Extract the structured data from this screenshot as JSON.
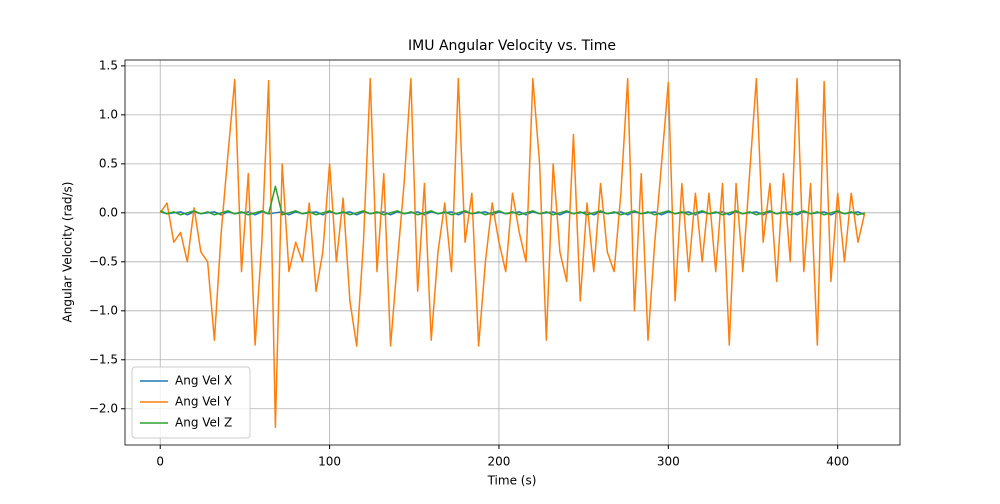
{
  "chart_data": {
    "type": "line",
    "title": "IMU Angular Velocity vs. Time",
    "x_label": "Time (s)",
    "y_label": "Angular Velocity (rad/s)",
    "x": [
      0,
      4,
      8,
      12,
      16,
      20,
      24,
      28,
      32,
      36,
      40,
      44,
      48,
      52,
      56,
      60,
      64,
      68,
      72,
      76,
      80,
      84,
      88,
      92,
      96,
      100,
      104,
      108,
      112,
      116,
      120,
      124,
      128,
      132,
      136,
      140,
      144,
      148,
      152,
      156,
      160,
      164,
      168,
      172,
      176,
      180,
      184,
      188,
      192,
      196,
      200,
      204,
      208,
      212,
      216,
      220,
      224,
      228,
      232,
      236,
      240,
      244,
      248,
      252,
      256,
      260,
      264,
      268,
      272,
      276,
      280,
      284,
      288,
      292,
      296,
      300,
      304,
      308,
      312,
      316,
      320,
      324,
      328,
      332,
      336,
      340,
      344,
      348,
      352,
      356,
      360,
      364,
      368,
      372,
      376,
      380,
      384,
      388,
      392,
      396,
      400,
      404,
      408,
      412,
      416
    ],
    "series": [
      {
        "name": "Ang Vel X",
        "color": "#1f77b4",
        "values": [
          0.01,
          -0.01,
          0,
          0.01,
          -0.02,
          0.01,
          -0.01,
          0,
          0.01,
          -0.02,
          0.01,
          -0.01,
          0,
          0.01,
          -0.02,
          0.01,
          -0.01,
          0,
          0.01,
          -0.02,
          0.01,
          -0.01,
          0,
          0.01,
          -0.02,
          0.01,
          -0.01,
          0,
          0.01,
          -0.02,
          0.01,
          -0.01,
          0,
          0.01,
          -0.02,
          0.01,
          -0.01,
          0,
          0.01,
          -0.02,
          0.01,
          -0.01,
          0,
          0.01,
          -0.02,
          0.01,
          -0.01,
          0,
          0.01,
          -0.02,
          0.01,
          -0.01,
          0,
          0.01,
          -0.02,
          0.01,
          -0.01,
          0,
          0.01,
          -0.02,
          0.01,
          -0.01,
          0,
          0.01,
          -0.02,
          0.01,
          -0.01,
          0,
          0.01,
          -0.02,
          0.01,
          -0.01,
          0,
          0.01,
          -0.02,
          0.01,
          -0.01,
          0,
          0.01,
          -0.02,
          0.01,
          -0.01,
          0,
          0.01,
          -0.02,
          0.01,
          -0.01,
          0,
          0.01,
          -0.02,
          0.01,
          -0.01,
          0,
          0.01,
          -0.02,
          0.01,
          -0.01,
          0,
          0.01,
          -0.02,
          0.01,
          -0.01,
          0,
          0.01,
          -0.02
        ]
      },
      {
        "name": "Ang Vel Y",
        "color": "#ff7f0e",
        "values": [
          0,
          0.1,
          -0.3,
          -0.2,
          -0.5,
          0.05,
          -0.4,
          -0.5,
          -1.3,
          -0.2,
          0.6,
          1.36,
          -0.6,
          0.4,
          -1.35,
          -0.3,
          1.35,
          -2.19,
          0.5,
          -0.6,
          -0.3,
          -0.5,
          0.1,
          -0.8,
          -0.4,
          0.5,
          -0.5,
          0.15,
          -0.9,
          -1.36,
          -0.3,
          1.37,
          -0.6,
          0.4,
          -1.36,
          -0.5,
          0.3,
          1.37,
          -0.8,
          0.3,
          -1.3,
          -0.4,
          0.1,
          -0.6,
          1.37,
          -0.3,
          0.2,
          -1.36,
          -0.5,
          0.1,
          -0.3,
          -0.6,
          0.2,
          -0.2,
          -0.5,
          1.37,
          0.5,
          -1.3,
          0.5,
          -0.4,
          -0.7,
          0.8,
          -0.9,
          0.1,
          -0.6,
          0.3,
          -0.4,
          -0.6,
          0.2,
          1.37,
          -1.0,
          0.4,
          -1.3,
          -0.3,
          0.5,
          1.33,
          -0.9,
          0.3,
          -0.6,
          0.2,
          -0.5,
          0.2,
          -0.6,
          0.3,
          -1.35,
          0.3,
          -0.6,
          0.4,
          1.37,
          -0.3,
          0.3,
          -0.7,
          0.4,
          -0.5,
          1.37,
          -0.6,
          0.3,
          -1.35,
          1.34,
          -0.7,
          0.2,
          -0.5,
          0.2,
          -0.3,
          0
        ]
      },
      {
        "name": "Ang Vel Z",
        "color": "#2ca02c",
        "values": [
          0.02,
          -0.01,
          0.01,
          -0.02,
          0,
          0.02,
          -0.01,
          0.01,
          -0.02,
          0,
          0.02,
          -0.01,
          0.01,
          -0.02,
          0,
          0.02,
          -0.01,
          0.27,
          -0.02,
          0,
          0.02,
          -0.01,
          0.01,
          -0.02,
          0,
          0.02,
          -0.01,
          0.01,
          -0.02,
          0,
          0.02,
          -0.01,
          0.01,
          -0.02,
          0,
          0.02,
          -0.01,
          0.01,
          -0.02,
          0,
          0.02,
          -0.01,
          0.01,
          -0.02,
          0,
          0.02,
          -0.01,
          0.01,
          -0.02,
          0,
          0.02,
          -0.01,
          0.01,
          -0.02,
          0,
          0.02,
          -0.01,
          0.01,
          -0.02,
          0,
          0.02,
          -0.01,
          0.01,
          -0.02,
          0,
          0.02,
          -0.01,
          0.01,
          -0.02,
          0,
          0.02,
          -0.01,
          0.01,
          -0.02,
          0,
          0.02,
          -0.01,
          0.01,
          -0.02,
          0,
          0.02,
          -0.01,
          0.01,
          -0.02,
          0,
          0.02,
          -0.01,
          0.01,
          -0.02,
          0,
          0.02,
          -0.01,
          0.01,
          -0.02,
          0,
          0.02,
          -0.01,
          0.01,
          -0.02,
          0,
          0.02,
          -0.01,
          0.01,
          -0.02,
          0
        ]
      }
    ],
    "xlim": [
      -20.8,
      436.8
    ],
    "ylim": [
      -2.37,
      1.56
    ],
    "xticks": [
      0,
      100,
      200,
      300,
      400
    ],
    "yticks": [
      {
        "value": -2,
        "label": "−2.0"
      },
      {
        "value": -1.5,
        "label": "−1.5"
      },
      {
        "value": -1,
        "label": "−1.0"
      },
      {
        "value": -0.5,
        "label": "−0.5"
      },
      {
        "value": 0,
        "label": "0.0"
      },
      0.5,
      {
        "value": 1,
        "label": "1.0"
      },
      1.5
    ],
    "grid": true,
    "legend": "lower left"
  }
}
